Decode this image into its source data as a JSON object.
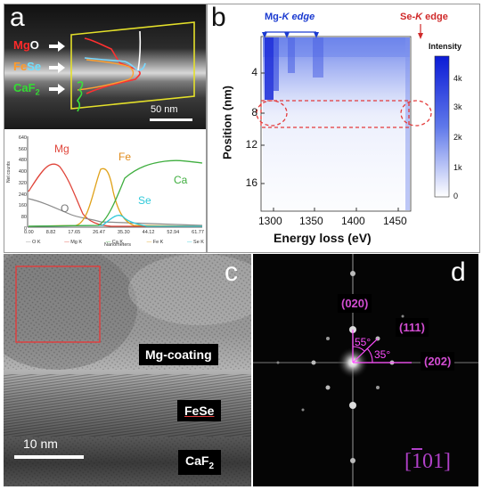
{
  "panel_a": {
    "label": "a",
    "layers": [
      {
        "text_a": "Mg",
        "text_b": "O",
        "color_a": "#ff2a2a",
        "color_b": "#ffffff"
      },
      {
        "text_a": "Fe",
        "text_b": "Se",
        "color_a": "#ff9a2a",
        "color_b": "#6ee0ff"
      },
      {
        "text_a": "CaF",
        "text_b": "2",
        "color_a": "#33dd33",
        "color_b": "#33dd33"
      }
    ],
    "scale_bar": "50 nm",
    "plot": {
      "ylabel": "Net counts",
      "xlabel": "Nanometers",
      "y_ticks": [
        "640",
        "560",
        "480",
        "400",
        "320",
        "240",
        "160",
        "80",
        "0"
      ],
      "x_ticks": [
        "0.00",
        "8.82",
        "17.65",
        "26.47",
        "35.30",
        "44.12",
        "52.94",
        "61.77"
      ],
      "element_labels": [
        {
          "text": "Mg",
          "color": "#e0453a"
        },
        {
          "text": "O",
          "color": "#777777"
        },
        {
          "text": "Fe",
          "color": "#e08a1a"
        },
        {
          "text": "Ca",
          "color": "#3fae3f"
        },
        {
          "text": "Se",
          "color": "#2fc9d9"
        }
      ],
      "legend": [
        "O K",
        "Mg K",
        "Ca K",
        "Fe K",
        "Se K"
      ]
    }
  },
  "panel_b": {
    "label": "b",
    "ylabel": "Position (nm)",
    "xlabel": "Energy loss (eV)",
    "y_ticks": [
      "4",
      "8",
      "12",
      "16"
    ],
    "x_ticks": [
      "1300",
      "1350",
      "1400",
      "1450"
    ],
    "colorbar_title": "Intensity",
    "colorbar_ticks": [
      "4k",
      "3k",
      "2k",
      "1k",
      "0"
    ],
    "mg_edge_prefix": "Mg-",
    "mg_edge_italic": "K edge",
    "se_edge_prefix": "Se-",
    "se_edge_italic": "K",
    "se_edge_suffix": " edge"
  },
  "panel_c": {
    "label": "c",
    "mg_coating": "Mg-coating",
    "fese": "FeSe",
    "caf2_text": "CaF",
    "caf2_sub": "2",
    "scale_bar": "10 nm"
  },
  "panel_d": {
    "label": "d",
    "spot_020": "(020)",
    "spot_111": "(111)",
    "spot_202": "(202)",
    "angle_55": "55°",
    "angle_35": "35°",
    "zone_axis_pre": "[",
    "zone_axis_bar": "1",
    "zone_axis_post": "01]"
  }
}
